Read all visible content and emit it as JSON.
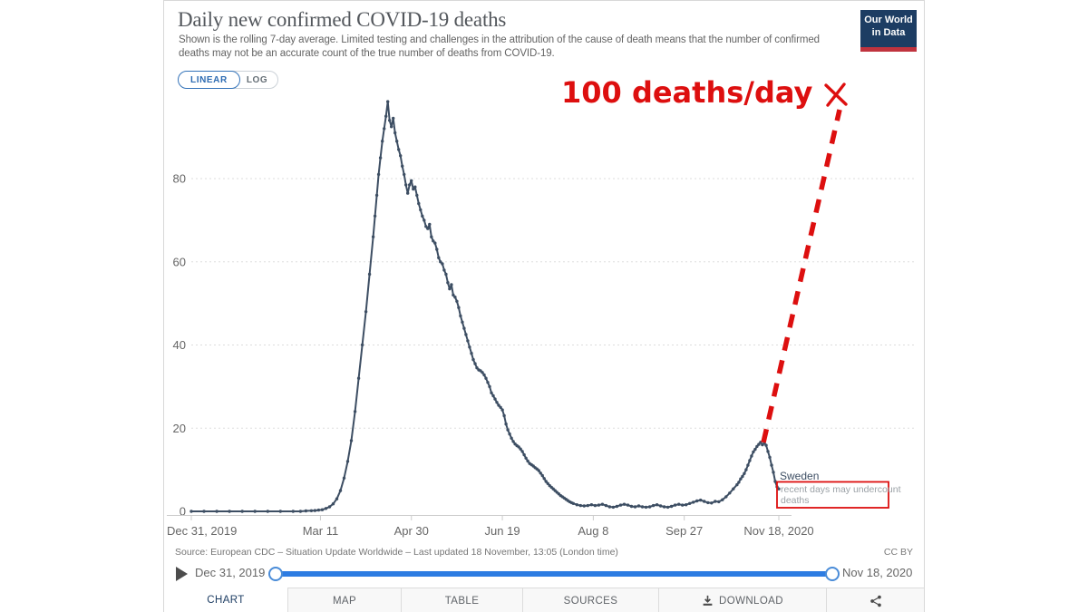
{
  "header": {
    "title": "Daily new confirmed COVID-19 deaths",
    "subtitle": "Shown is the rolling 7-day average. Limited testing and challenges in the attribution of the cause of death means that the number of confirmed deaths may not be an accurate count of the true number of deaths from COVID-19.",
    "logo": {
      "line1": "Our World",
      "line2": "in Data"
    }
  },
  "toggle": {
    "linear": "LINEAR",
    "log": "LOG",
    "active": "LINEAR"
  },
  "chart_data": {
    "type": "line",
    "title": "Daily new confirmed COVID-19 deaths",
    "ylabel": "",
    "xlabel": "",
    "ylim": [
      0,
      100
    ],
    "y_ticks": [
      0,
      20,
      40,
      60,
      80
    ],
    "grid": true,
    "x_ticks": [
      {
        "label": "Dec 31, 2019",
        "day": 0,
        "align": "left"
      },
      {
        "label": "Mar 11",
        "day": 71
      },
      {
        "label": "Apr 30",
        "day": 121
      },
      {
        "label": "Jun 19",
        "day": 171
      },
      {
        "label": "Aug 8",
        "day": 221
      },
      {
        "label": "Sep 27",
        "day": 271
      },
      {
        "label": "Nov 18, 2020",
        "day": 323
      }
    ],
    "series": [
      {
        "name": "Sweden",
        "points": [
          [
            0,
            0
          ],
          [
            7,
            0
          ],
          [
            14,
            0
          ],
          [
            21,
            0
          ],
          [
            28,
            0
          ],
          [
            35,
            0
          ],
          [
            42,
            0
          ],
          [
            49,
            0
          ],
          [
            56,
            0
          ],
          [
            60,
            0
          ],
          [
            63,
            0.1
          ],
          [
            66,
            0.15
          ],
          [
            68,
            0.2
          ],
          [
            70,
            0.3
          ],
          [
            72,
            0.4
          ],
          [
            74,
            0.7
          ],
          [
            76,
            1.1
          ],
          [
            78,
            1.8
          ],
          [
            80,
            3
          ],
          [
            82,
            5
          ],
          [
            84,
            8
          ],
          [
            86,
            12
          ],
          [
            88,
            17
          ],
          [
            90,
            24
          ],
          [
            92,
            32
          ],
          [
            94,
            40
          ],
          [
            96,
            48
          ],
          [
            98,
            57
          ],
          [
            100,
            66
          ],
          [
            101,
            71
          ],
          [
            102,
            76
          ],
          [
            103,
            81
          ],
          [
            104,
            85
          ],
          [
            105,
            89
          ],
          [
            106,
            92
          ],
          [
            107,
            95
          ],
          [
            108,
            98.5
          ],
          [
            109,
            94
          ],
          [
            110,
            92.5
          ],
          [
            111,
            94.5
          ],
          [
            112,
            91
          ],
          [
            113,
            89
          ],
          [
            114,
            87
          ],
          [
            115,
            85.5
          ],
          [
            116,
            83
          ],
          [
            117,
            81
          ],
          [
            118,
            78.5
          ],
          [
            119,
            76.5
          ],
          [
            120,
            78.5
          ],
          [
            121,
            79.5
          ],
          [
            122,
            77.5
          ],
          [
            123,
            78
          ],
          [
            124,
            76
          ],
          [
            125,
            74
          ],
          [
            126,
            72.5
          ],
          [
            127,
            71
          ],
          [
            128,
            70
          ],
          [
            129,
            68.5
          ],
          [
            130,
            68
          ],
          [
            131,
            69
          ],
          [
            132,
            66
          ],
          [
            133,
            65
          ],
          [
            134,
            64.5
          ],
          [
            135,
            63
          ],
          [
            136,
            61
          ],
          [
            137,
            60
          ],
          [
            138,
            59.5
          ],
          [
            139,
            58
          ],
          [
            140,
            57
          ],
          [
            141,
            55
          ],
          [
            142,
            53.5
          ],
          [
            143,
            54.5
          ],
          [
            144,
            52
          ],
          [
            145,
            51.5
          ],
          [
            146,
            50.5
          ],
          [
            147,
            49
          ],
          [
            148,
            47
          ],
          [
            149,
            45.5
          ],
          [
            150,
            44
          ],
          [
            151,
            42.5
          ],
          [
            152,
            41
          ],
          [
            153,
            39.5
          ],
          [
            154,
            38
          ],
          [
            155,
            36.5
          ],
          [
            156,
            35.5
          ],
          [
            157,
            34.5
          ],
          [
            158,
            34
          ],
          [
            159,
            33.8
          ],
          [
            160,
            33.4
          ],
          [
            161,
            32.8
          ],
          [
            162,
            32
          ],
          [
            163,
            31
          ],
          [
            164,
            30
          ],
          [
            165,
            28.5
          ],
          [
            166,
            27.8
          ],
          [
            167,
            27
          ],
          [
            168,
            26.2
          ],
          [
            169,
            25.5
          ],
          [
            170,
            25
          ],
          [
            171,
            24.4
          ],
          [
            172,
            23
          ],
          [
            173,
            21
          ],
          [
            174,
            19.6
          ],
          [
            175,
            18.6
          ],
          [
            176,
            17.6
          ],
          [
            177,
            16.8
          ],
          [
            178,
            16.2
          ],
          [
            179,
            15.8
          ],
          [
            180,
            15.5
          ],
          [
            181,
            15
          ],
          [
            182,
            14.4
          ],
          [
            183,
            13.6
          ],
          [
            184,
            12.8
          ],
          [
            185,
            12.1
          ],
          [
            186,
            11.5
          ],
          [
            187,
            11.2
          ],
          [
            188,
            10.9
          ],
          [
            189,
            10.5
          ],
          [
            190,
            10.2
          ],
          [
            191,
            9.8
          ],
          [
            192,
            9.2
          ],
          [
            193,
            8.6
          ],
          [
            194,
            7.9
          ],
          [
            195,
            7.2
          ],
          [
            196,
            6.7
          ],
          [
            197,
            6.2
          ],
          [
            198,
            5.8
          ],
          [
            199,
            5.4
          ],
          [
            200,
            5
          ],
          [
            201,
            4.6
          ],
          [
            202,
            4.2
          ],
          [
            203,
            3.8
          ],
          [
            204,
            3.5
          ],
          [
            205,
            3.2
          ],
          [
            206,
            2.9
          ],
          [
            207,
            2.6
          ],
          [
            208,
            2.3
          ],
          [
            209,
            2.1
          ],
          [
            210,
            1.9
          ],
          [
            212,
            1.6
          ],
          [
            214,
            1.4
          ],
          [
            216,
            1.3
          ],
          [
            218,
            1.4
          ],
          [
            220,
            1.6
          ],
          [
            222,
            1.4
          ],
          [
            224,
            1.5
          ],
          [
            226,
            1.7
          ],
          [
            228,
            1.4
          ],
          [
            230,
            1.1
          ],
          [
            232,
            1.0
          ],
          [
            234,
            1.2
          ],
          [
            236,
            1.5
          ],
          [
            238,
            1.7
          ],
          [
            240,
            1.5
          ],
          [
            242,
            1.2
          ],
          [
            244,
            1.1
          ],
          [
            246,
            1.3
          ],
          [
            248,
            1.1
          ],
          [
            250,
            1.0
          ],
          [
            252,
            1.1
          ],
          [
            254,
            1.4
          ],
          [
            256,
            1.6
          ],
          [
            258,
            1.3
          ],
          [
            260,
            1.1
          ],
          [
            262,
            1.0
          ],
          [
            264,
            1.2
          ],
          [
            266,
            1.5
          ],
          [
            268,
            1.7
          ],
          [
            270,
            1.5
          ],
          [
            272,
            1.6
          ],
          [
            274,
            1.9
          ],
          [
            276,
            2.2
          ],
          [
            278,
            2.5
          ],
          [
            280,
            2.7
          ],
          [
            282,
            2.4
          ],
          [
            284,
            2.1
          ],
          [
            286,
            2.0
          ],
          [
            288,
            2.4
          ],
          [
            290,
            2.3
          ],
          [
            292,
            2.8
          ],
          [
            294,
            3.5
          ],
          [
            296,
            4.4
          ],
          [
            298,
            5.4
          ],
          [
            300,
            6.4
          ],
          [
            301,
            7.0
          ],
          [
            302,
            7.8
          ],
          [
            303,
            8.4
          ],
          [
            304,
            9.1
          ],
          [
            305,
            10.0
          ],
          [
            306,
            11.1
          ],
          [
            307,
            12.2
          ],
          [
            308,
            13.3
          ],
          [
            309,
            14.3
          ],
          [
            310,
            14.9
          ],
          [
            311,
            15.6
          ],
          [
            312,
            16.1
          ],
          [
            313,
            16.6
          ],
          [
            314,
            16.0
          ],
          [
            315,
            16.4
          ],
          [
            316,
            15.9
          ],
          [
            317,
            14.4
          ],
          [
            318,
            13.0
          ],
          [
            319,
            11.1
          ],
          [
            320,
            9.4
          ],
          [
            321,
            7.2
          ],
          [
            322,
            5.9
          ],
          [
            323,
            5.4
          ]
        ]
      }
    ],
    "entity_label": "Sweden",
    "entity_note_lines": [
      "recent days may undercount",
      "deaths"
    ],
    "annotation": {
      "text": "100 deaths/day",
      "value": 100
    }
  },
  "footer": {
    "source": "Source: European CDC – Situation Update Worldwide – Last updated 18 November, 13:05 (London time)",
    "license": "CC BY"
  },
  "timeline": {
    "start": "Dec 31, 2019",
    "end": "Nov 18, 2020"
  },
  "tabs": [
    {
      "label": "CHART",
      "active": true
    },
    {
      "label": "MAP"
    },
    {
      "label": "TABLE"
    },
    {
      "label": "SOURCES"
    },
    {
      "label": "DOWNLOAD",
      "icon": "download"
    },
    {
      "label": "",
      "icon": "share"
    }
  ],
  "colors": {
    "line": "#3d4e63",
    "annotation_red": "#dd0f0f",
    "accent_blue": "#2d7ce2",
    "logo_navy": "#1d3d63",
    "logo_red": "#c0333e",
    "tick_text": "#666666",
    "grid": "#dddddd",
    "note_gray": "#9ba1a6"
  }
}
